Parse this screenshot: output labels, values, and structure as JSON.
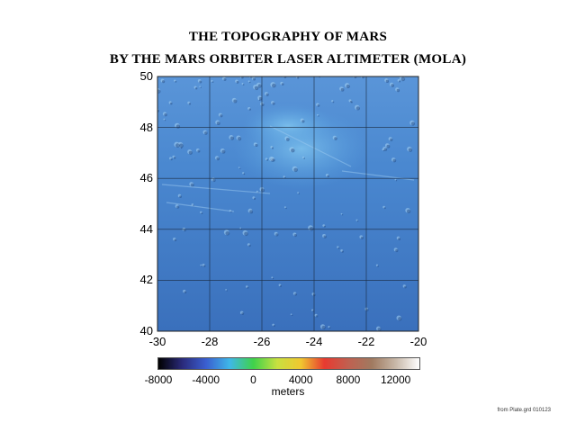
{
  "title_line1": "THE TOPOGRAPHY OF MARS",
  "title_line2": "BY THE MARS ORBITER LASER ALTIMETER (MOLA)",
  "map": {
    "lon_range": [
      -30,
      -20
    ],
    "lat_range": [
      40,
      50
    ],
    "x_ticks": [
      "-30",
      "-28",
      "-26",
      "-24",
      "-22",
      "-20"
    ],
    "y_ticks": [
      "50",
      "48",
      "46",
      "44",
      "42",
      "40"
    ],
    "grid": true,
    "base_color": "#3f7cc8"
  },
  "colorbar": {
    "tick_labels": [
      "-8000",
      "-4000",
      "0",
      "4000",
      "8000",
      "12000"
    ],
    "unit": "meters",
    "range": [
      -8000,
      14000
    ],
    "colors": [
      "#000000",
      "#2a2a7a",
      "#3a5ed0",
      "#3fb7e8",
      "#3fd24a",
      "#c8e040",
      "#f0c830",
      "#e83a30",
      "#c06050",
      "#a07a60",
      "#c8b8a8",
      "#ffffff"
    ]
  },
  "source_note": "from Plate.grd 010123"
}
